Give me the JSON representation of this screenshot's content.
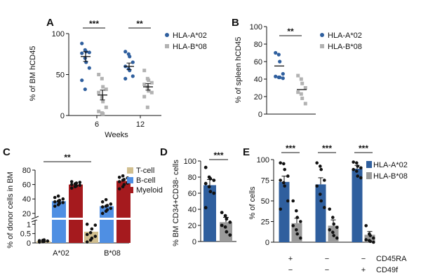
{
  "colors": {
    "hla_a02": "#2f5f9e",
    "hla_a02_marker": "#2f5f9e",
    "hla_b08": "#9a9a9a",
    "hla_b08_marker": "#b2b2b2",
    "tcell": "#d1bf8f",
    "bcell": "#4f8fe3",
    "myeloid": "#a51a1e",
    "sig": "#111111"
  },
  "chart_data": [
    {
      "panel": "A",
      "type": "scatter",
      "ylabel": "% of BM hCD45",
      "xlabel": "Weeks",
      "ylim": [
        0,
        100
      ],
      "yticks": [
        0,
        50,
        100
      ],
      "categories": [
        "6",
        "12"
      ],
      "legend": [
        "HLA-A*02",
        "HLA-B*08"
      ],
      "significance": [
        "***",
        "**"
      ],
      "series": [
        {
          "name": "HLA-A*02",
          "groups": [
            {
              "values": [
                88,
                80,
                78,
                77,
                76,
                70,
                65,
                58,
                43,
                32
              ],
              "mean": 72,
              "sem": 6
            },
            {
              "values": [
                78,
                75,
                72,
                65,
                60,
                57,
                55,
                48,
                45
              ],
              "mean": 60,
              "sem": 4
            }
          ]
        },
        {
          "name": "HLA-B*08",
          "groups": [
            {
              "values": [
                50,
                45,
                35,
                32,
                28,
                22,
                17,
                10,
                5,
                3,
                2
              ],
              "mean": 25,
              "sem": 6
            },
            {
              "values": [
                55,
                45,
                43,
                40,
                38,
                35,
                30,
                28,
                23,
                10
              ],
              "mean": 35,
              "sem": 4
            }
          ]
        }
      ]
    },
    {
      "panel": "B",
      "type": "scatter",
      "ylabel": "% of spleen hCD45",
      "ylim": [
        0,
        100
      ],
      "yticks": [
        0,
        20,
        40,
        60,
        80,
        100
      ],
      "legend": [
        "HLA-A*02",
        "HLA-B*08"
      ],
      "significance": [
        "**"
      ],
      "series": [
        {
          "name": "HLA-A*02",
          "values": [
            70,
            68,
            60,
            46,
            43,
            42,
            42,
            41
          ],
          "mean": 55
        },
        {
          "name": "HLA-B*08",
          "values": [
            44,
            40,
            35,
            30,
            25,
            23,
            18,
            12
          ],
          "mean": 28
        }
      ]
    },
    {
      "panel": "C",
      "type": "bar",
      "ylabel": "% of donor cells in BM",
      "categories": [
        "A*02",
        "B*08"
      ],
      "yticks_lower": [
        0,
        0.5,
        1
      ],
      "yticks_upper": [
        20,
        40,
        60,
        80
      ],
      "legend": [
        "T-cell",
        "B-cell",
        "Myeloid"
      ],
      "significance": [
        "**"
      ],
      "series": [
        {
          "name": "T-cell",
          "values": [
            0.1,
            0.6
          ],
          "points": [
            [
              0.04,
              0.06,
              0.08,
              0.1,
              0.12,
              0.14,
              0.16
            ],
            [
              0.05,
              0.15,
              0.25,
              0.35,
              0.45,
              0.55,
              0.75,
              0.95,
              1.0
            ]
          ]
        },
        {
          "name": "B-cell",
          "values": [
            37,
            30
          ],
          "points": [
            [
              30,
              32,
              34,
              35,
              36,
              37,
              38,
              40,
              42,
              44
            ],
            [
              20,
              23,
              25,
              27,
              29,
              30,
              31,
              33,
              36,
              39
            ]
          ]
        },
        {
          "name": "Myeloid",
          "values": [
            60,
            65
          ],
          "points": [
            [
              55,
              57,
              58,
              59,
              60,
              61,
              62,
              63,
              64
            ],
            [
              54,
              57,
              60,
              62,
              64,
              66,
              67,
              69,
              70,
              72
            ]
          ]
        }
      ]
    },
    {
      "panel": "D",
      "type": "bar",
      "ylabel": "% BM CD34+CD38- cells",
      "ylim": [
        0,
        100
      ],
      "yticks": [
        0,
        20,
        40,
        60,
        80,
        100
      ],
      "significance": [
        "***"
      ],
      "series": [
        {
          "name": "HLA-A*02",
          "value": 70,
          "sem": 7,
          "points": [
            92,
            80,
            78,
            76,
            72,
            68,
            62,
            60,
            42
          ]
        },
        {
          "name": "HLA-B*08",
          "value": 24,
          "sem": 6,
          "points": [
            36,
            32,
            28,
            24,
            20,
            18,
            12,
            8
          ]
        }
      ]
    },
    {
      "panel": "E",
      "type": "bar",
      "ylabel": "% of cells",
      "ylim": [
        0,
        100
      ],
      "yticks": [
        0,
        25,
        50,
        75,
        100
      ],
      "legend": [
        "HLA-A*02",
        "HLA-B*08"
      ],
      "significance": [
        "***",
        "***",
        "***"
      ],
      "row_labels": [
        "CD45RA",
        "CD49f"
      ],
      "groups": [
        {
          "cd45ra": "+",
          "cd49f": "−"
        },
        {
          "cd45ra": "−",
          "cd49f": "−"
        },
        {
          "cd45ra": "−",
          "cd49f": "+"
        }
      ],
      "series": [
        {
          "name": "HLA-A*02",
          "values": [
            73,
            70,
            89
          ],
          "sem": [
            7,
            8,
            4
          ],
          "points": [
            [
              96,
              95,
              88,
              80,
              75,
              72,
              68,
              50,
              40
            ],
            [
              96,
              92,
              88,
              75,
              68,
              58,
              50,
              42
            ],
            [
              97,
              96,
              92,
              90,
              88,
              86,
              80,
              78
            ]
          ]
        },
        {
          "name": "HLA-B*08",
          "values": [
            23,
            20,
            9
          ],
          "sem": [
            6,
            7,
            4
          ],
          "points": [
            [
              50,
              38,
              30,
              25,
              20,
              15,
              10,
              5
            ],
            [
              40,
              30,
              22,
              18,
              15,
              12,
              8,
              5
            ],
            [
              20,
              10,
              8,
              5,
              3,
              2,
              1,
              0
            ]
          ]
        }
      ]
    }
  ],
  "panels": {
    "A": {
      "label": "A"
    },
    "B": {
      "label": "B"
    },
    "C": {
      "label": "C"
    },
    "D": {
      "label": "D"
    },
    "E": {
      "label": "E"
    }
  }
}
